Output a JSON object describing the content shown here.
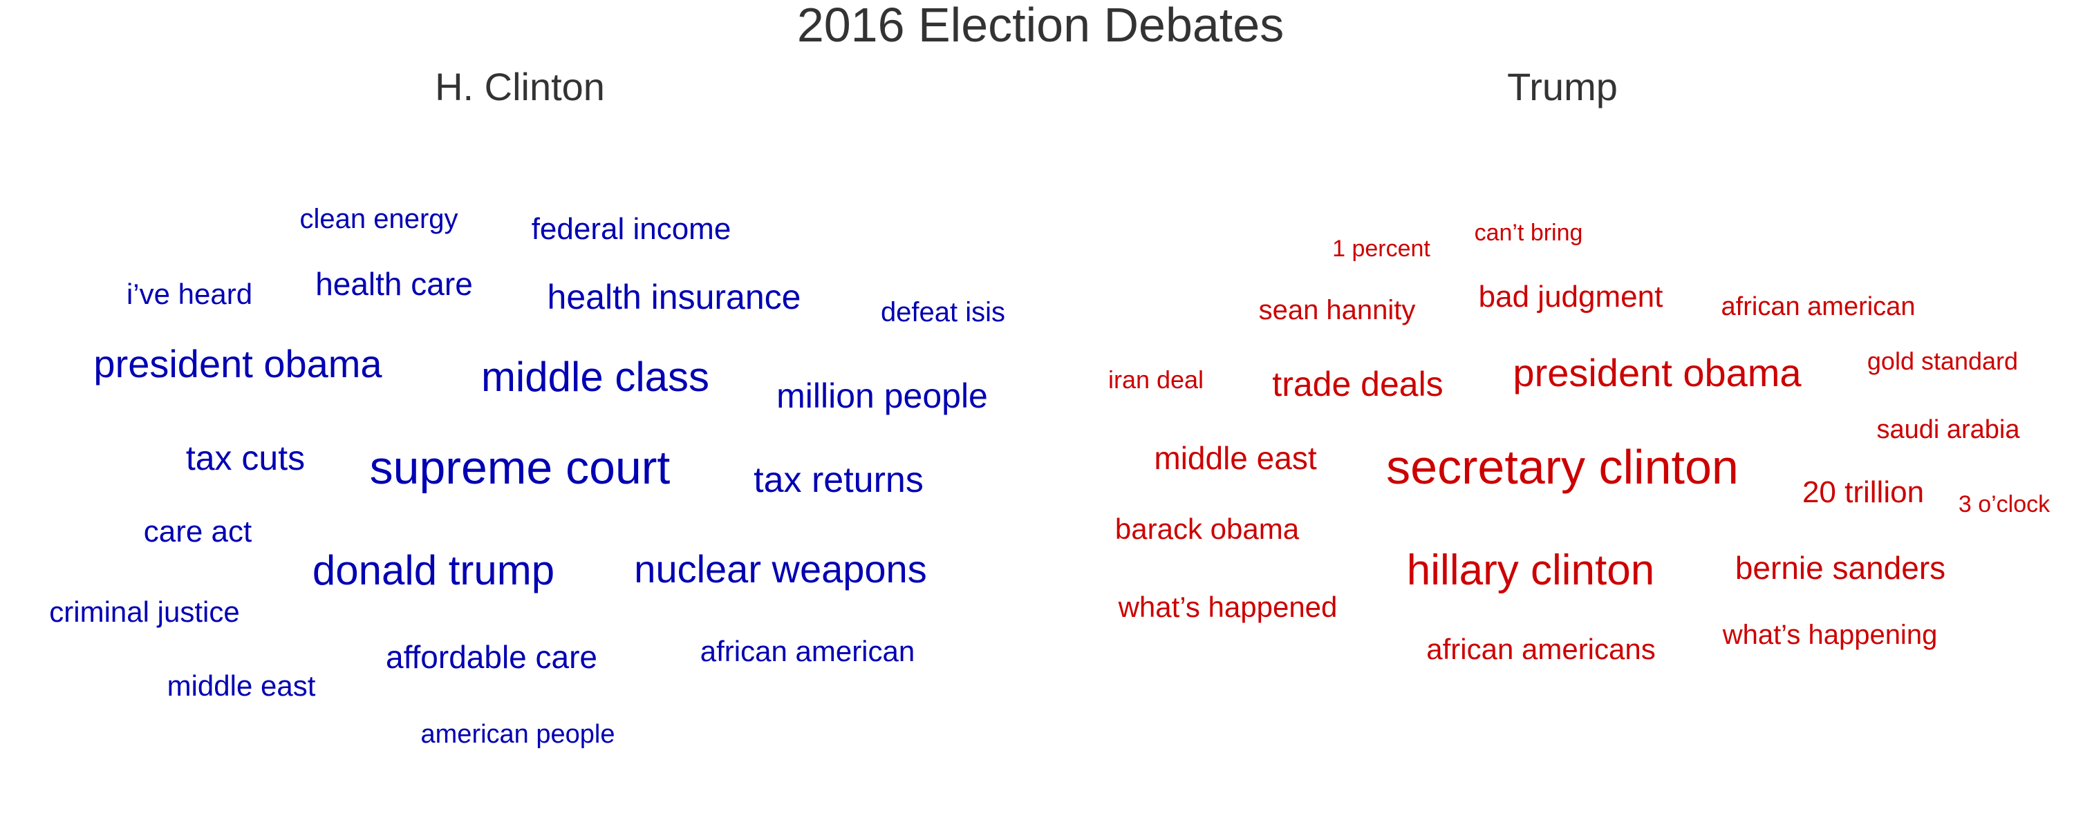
{
  "colors": {
    "title": "#333333",
    "clinton": "#0000b3",
    "trump": "#cc0000"
  },
  "chart_data": {
    "type": "wordcloud",
    "title": "2016 Election Debates",
    "panels": [
      {
        "name": "H. Clinton",
        "color": "#0000b3",
        "words": [
          {
            "text": "supreme court"
          },
          {
            "text": "middle class"
          },
          {
            "text": "donald trump"
          },
          {
            "text": "nuclear weapons"
          },
          {
            "text": "president obama"
          },
          {
            "text": "tax returns"
          },
          {
            "text": "health insurance"
          },
          {
            "text": "million people"
          },
          {
            "text": "tax cuts"
          },
          {
            "text": "affordable care"
          },
          {
            "text": "health care"
          },
          {
            "text": "federal income"
          },
          {
            "text": "african american"
          },
          {
            "text": "care act"
          },
          {
            "text": "i’ve heard"
          },
          {
            "text": "criminal justice"
          },
          {
            "text": "middle east"
          },
          {
            "text": "clean energy"
          },
          {
            "text": "defeat isis"
          },
          {
            "text": "american people"
          }
        ]
      },
      {
        "name": "Trump",
        "color": "#cc0000",
        "words": [
          {
            "text": "secretary clinton"
          },
          {
            "text": "hillary clinton"
          },
          {
            "text": "president obama"
          },
          {
            "text": "trade deals"
          },
          {
            "text": "bernie sanders"
          },
          {
            "text": "middle east"
          },
          {
            "text": "bad judgment"
          },
          {
            "text": "20 trillion"
          },
          {
            "text": "african americans"
          },
          {
            "text": "what’s happened"
          },
          {
            "text": "barack obama"
          },
          {
            "text": "sean hannity"
          },
          {
            "text": "what’s happening"
          },
          {
            "text": "african american"
          },
          {
            "text": "saudi arabia"
          },
          {
            "text": "gold standard"
          },
          {
            "text": "iran deal"
          },
          {
            "text": "1 percent"
          },
          {
            "text": "can’t bring"
          },
          {
            "text": "3 o’clock"
          }
        ]
      }
    ]
  }
}
